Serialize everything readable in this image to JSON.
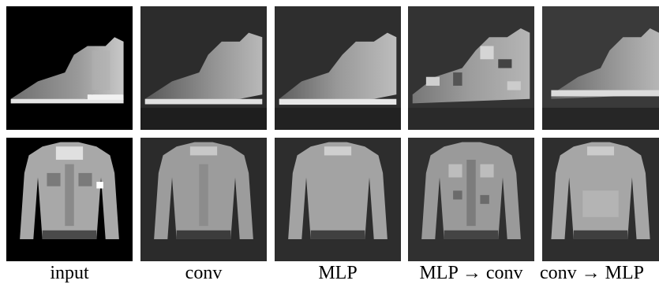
{
  "columns": [
    {
      "key": "input",
      "label": "input"
    },
    {
      "key": "conv",
      "label": "conv"
    },
    {
      "key": "mlp",
      "label": "MLP"
    },
    {
      "key": "mlp_conv",
      "label": "MLP → conv"
    },
    {
      "key": "conv_mlp",
      "label": "conv → MLP"
    }
  ],
  "rows": [
    {
      "key": "boot",
      "item": "ankle boot"
    },
    {
      "key": "shirt",
      "item": "shirt"
    }
  ]
}
